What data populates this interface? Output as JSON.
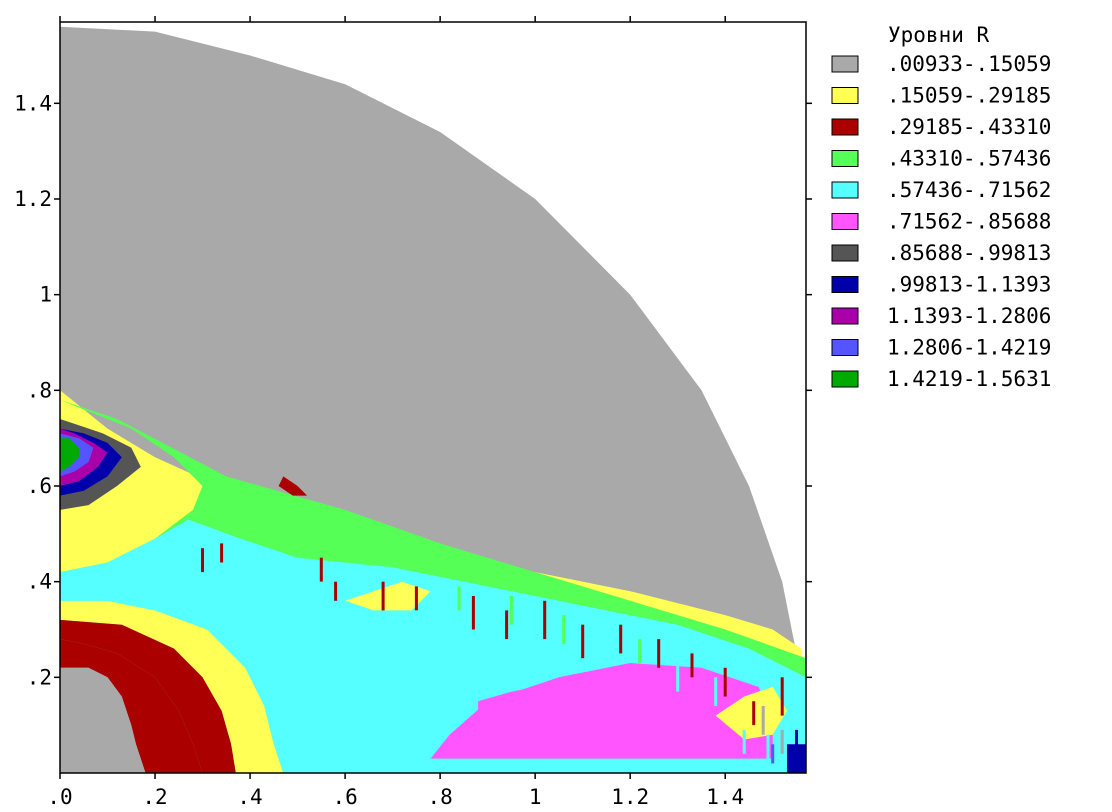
{
  "chart_data": {
    "type": "heatmap",
    "title": "",
    "xlabel": "",
    "ylabel": "",
    "xlim": [
      0,
      1.57
    ],
    "ylim": [
      0,
      1.57
    ],
    "x_ticks": [
      {
        "v": 0.0,
        "label": ".0"
      },
      {
        "v": 0.2,
        "label": ".2"
      },
      {
        "v": 0.4,
        "label": ".4"
      },
      {
        "v": 0.6,
        "label": ".6"
      },
      {
        "v": 0.8,
        "label": ".8"
      },
      {
        "v": 1.0,
        "label": "1"
      },
      {
        "v": 1.2,
        "label": "1.2"
      },
      {
        "v": 1.4,
        "label": "1.4"
      }
    ],
    "y_ticks": [
      {
        "v": 0.2,
        "label": ".2"
      },
      {
        "v": 0.4,
        "label": ".4"
      },
      {
        "v": 0.6,
        "label": ".6"
      },
      {
        "v": 0.8,
        "label": ".8"
      },
      {
        "v": 1.0,
        "label": "1"
      },
      {
        "v": 1.2,
        "label": "1.2"
      },
      {
        "v": 1.4,
        "label": "1.4"
      }
    ],
    "grid": false,
    "legend": {
      "title": "Уровни R",
      "placement": "right",
      "levels": [
        {
          "label": ".00933-.15059",
          "color": "#a9a9a9"
        },
        {
          "label": ".15059-.29185",
          "color": "#ffff55"
        },
        {
          "label": ".29185-.43310",
          "color": "#aa0000"
        },
        {
          "label": ".43310-.57436",
          "color": "#55ff55"
        },
        {
          "label": ".57436-.71562",
          "color": "#55ffff"
        },
        {
          "label": ".71562-.85688",
          "color": "#ff55ff"
        },
        {
          "label": ".85688-.99813",
          "color": "#555555"
        },
        {
          "label": ".99813-1.1393",
          "color": "#0000aa"
        },
        {
          "label": "1.1393-1.2806",
          "color": "#aa00aa"
        },
        {
          "label": "1.2806-1.4219",
          "color": "#5555ff"
        },
        {
          "label": "1.4219-1.5631",
          "color": "#00aa00"
        }
      ]
    },
    "domain_outline": [
      [
        0,
        1.56
      ],
      [
        0.2,
        1.55
      ],
      [
        0.4,
        1.5
      ],
      [
        0.6,
        1.44
      ],
      [
        0.8,
        1.34
      ],
      [
        1.0,
        1.2
      ],
      [
        1.2,
        1.0
      ],
      [
        1.35,
        0.8
      ],
      [
        1.45,
        0.6
      ],
      [
        1.52,
        0.4
      ],
      [
        1.56,
        0.2
      ],
      [
        1.57,
        0
      ]
    ],
    "regions": [
      {
        "level": 1,
        "points": [
          [
            0,
            0.32
          ],
          [
            0.13,
            0.31
          ],
          [
            0.24,
            0.26
          ],
          [
            0.3,
            0.2
          ],
          [
            0.34,
            0.13
          ],
          [
            0.36,
            0.06
          ],
          [
            0.37,
            0
          ],
          [
            1.57,
            0
          ],
          [
            1.57,
            0.2
          ],
          [
            1.56,
            0.26
          ],
          [
            1.5,
            0.3
          ],
          [
            1.4,
            0.33
          ],
          [
            1.2,
            0.38
          ],
          [
            1.0,
            0.42
          ],
          [
            0.8,
            0.46
          ],
          [
            0.6,
            0.51
          ],
          [
            0.4,
            0.57
          ],
          [
            0.2,
            0.66
          ],
          [
            0.1,
            0.72
          ],
          [
            0,
            0.8
          ]
        ]
      },
      {
        "level": 3,
        "points": [
          [
            0,
            0.42
          ],
          [
            0.1,
            0.44
          ],
          [
            0.2,
            0.49
          ],
          [
            0.28,
            0.55
          ],
          [
            0.3,
            0.6
          ],
          [
            0.24,
            0.66
          ],
          [
            0.15,
            0.72
          ],
          [
            0.05,
            0.76
          ],
          [
            0,
            0.78
          ],
          [
            0.12,
            0.74
          ],
          [
            0.35,
            0.62
          ],
          [
            0.6,
            0.55
          ],
          [
            0.8,
            0.48
          ],
          [
            1.0,
            0.42
          ],
          [
            1.2,
            0.36
          ],
          [
            1.4,
            0.3
          ],
          [
            1.57,
            0.24
          ],
          [
            1.57,
            0
          ],
          [
            0.47,
            0
          ],
          [
            0.45,
            0.06
          ],
          [
            0.43,
            0.14
          ],
          [
            0.39,
            0.22
          ],
          [
            0.31,
            0.3
          ],
          [
            0.2,
            0.34
          ],
          [
            0.1,
            0.36
          ],
          [
            0,
            0.36
          ]
        ]
      },
      {
        "level": 4,
        "points": [
          [
            0,
            0.36
          ],
          [
            0.1,
            0.36
          ],
          [
            0.2,
            0.34
          ],
          [
            0.31,
            0.3
          ],
          [
            0.39,
            0.22
          ],
          [
            0.43,
            0.14
          ],
          [
            0.45,
            0.06
          ],
          [
            0.47,
            0
          ],
          [
            1.57,
            0
          ],
          [
            1.57,
            0.2
          ],
          [
            1.45,
            0.26
          ],
          [
            1.3,
            0.31
          ],
          [
            1.1,
            0.35
          ],
          [
            0.9,
            0.39
          ],
          [
            0.7,
            0.43
          ],
          [
            0.5,
            0.45
          ],
          [
            0.38,
            0.49
          ],
          [
            0.27,
            0.53
          ],
          [
            0.2,
            0.49
          ],
          [
            0.1,
            0.44
          ],
          [
            0,
            0.42
          ]
        ]
      },
      {
        "level": 2,
        "points": [
          [
            0,
            0.22
          ],
          [
            0.06,
            0.22
          ],
          [
            0.1,
            0.2
          ],
          [
            0.13,
            0.16
          ],
          [
            0.15,
            0.1
          ],
          [
            0.16,
            0.06
          ],
          [
            0.18,
            0
          ],
          [
            0.3,
            0
          ],
          [
            0.28,
            0.06
          ],
          [
            0.25,
            0.13
          ],
          [
            0.2,
            0.2
          ],
          [
            0.12,
            0.25
          ],
          [
            0.05,
            0.27
          ],
          [
            0,
            0.28
          ]
        ]
      },
      {
        "level": 2,
        "points": [
          [
            0,
            0.28
          ],
          [
            0.05,
            0.27
          ],
          [
            0.12,
            0.25
          ],
          [
            0.2,
            0.2
          ],
          [
            0.25,
            0.13
          ],
          [
            0.28,
            0.06
          ],
          [
            0.3,
            0
          ],
          [
            0.37,
            0
          ],
          [
            0.36,
            0.06
          ],
          [
            0.34,
            0.13
          ],
          [
            0.3,
            0.2
          ],
          [
            0.24,
            0.26
          ],
          [
            0.13,
            0.31
          ],
          [
            0,
            0.32
          ]
        ]
      },
      {
        "level": 0,
        "points": [
          [
            0,
            0
          ],
          [
            0.18,
            0
          ],
          [
            0.16,
            0.06
          ],
          [
            0.15,
            0.1
          ],
          [
            0.13,
            0.16
          ],
          [
            0.1,
            0.2
          ],
          [
            0.06,
            0.22
          ],
          [
            0,
            0.22
          ]
        ]
      },
      {
        "level": 5,
        "points": [
          [
            0.78,
            0.03
          ],
          [
            0.82,
            0.08
          ],
          [
            0.9,
            0.15
          ],
          [
            1.05,
            0.2
          ],
          [
            1.2,
            0.23
          ],
          [
            1.35,
            0.22
          ],
          [
            1.47,
            0.18
          ],
          [
            1.5,
            0.12
          ],
          [
            1.5,
            0.03
          ]
        ]
      },
      {
        "level": 5,
        "points": [
          [
            0.88,
            0.15
          ],
          [
            0.95,
            0.17
          ],
          [
            1.05,
            0.19
          ],
          [
            1.12,
            0.2
          ],
          [
            1.14,
            0.17
          ],
          [
            1.12,
            0.12
          ],
          [
            1.06,
            0.09
          ],
          [
            0.98,
            0.08
          ],
          [
            0.92,
            0.09
          ],
          [
            0.88,
            0.12
          ]
        ]
      },
      {
        "level": 6,
        "points": [
          [
            0,
            0.55
          ],
          [
            0.06,
            0.56
          ],
          [
            0.12,
            0.6
          ],
          [
            0.17,
            0.64
          ],
          [
            0.15,
            0.68
          ],
          [
            0.09,
            0.71
          ],
          [
            0.03,
            0.73
          ],
          [
            0,
            0.74
          ]
        ]
      },
      {
        "level": 7,
        "points": [
          [
            0,
            0.58
          ],
          [
            0.05,
            0.59
          ],
          [
            0.1,
            0.62
          ],
          [
            0.13,
            0.66
          ],
          [
            0.1,
            0.69
          ],
          [
            0.05,
            0.71
          ],
          [
            0,
            0.72
          ]
        ]
      },
      {
        "level": 8,
        "points": [
          [
            0,
            0.6
          ],
          [
            0.04,
            0.61
          ],
          [
            0.08,
            0.64
          ],
          [
            0.1,
            0.67
          ],
          [
            0.07,
            0.69
          ],
          [
            0.03,
            0.71
          ],
          [
            0,
            0.72
          ]
        ]
      },
      {
        "level": 9,
        "points": [
          [
            0,
            0.62
          ],
          [
            0.03,
            0.63
          ],
          [
            0.06,
            0.65
          ],
          [
            0.07,
            0.68
          ],
          [
            0.04,
            0.7
          ],
          [
            0,
            0.71
          ]
        ]
      },
      {
        "level": 10,
        "points": [
          [
            0,
            0.63
          ],
          [
            0.02,
            0.64
          ],
          [
            0.04,
            0.66
          ],
          [
            0.04,
            0.68
          ],
          [
            0.02,
            0.7
          ],
          [
            0,
            0.7
          ]
        ]
      },
      {
        "level": 2,
        "points": [
          [
            0.47,
            0.62
          ],
          [
            0.5,
            0.6
          ],
          [
            0.52,
            0.58
          ],
          [
            0.49,
            0.58
          ],
          [
            0.46,
            0.6
          ]
        ]
      },
      {
        "level": 1,
        "points": [
          [
            0.6,
            0.36
          ],
          [
            0.66,
            0.38
          ],
          [
            0.72,
            0.4
          ],
          [
            0.78,
            0.38
          ],
          [
            0.74,
            0.34
          ],
          [
            0.66,
            0.34
          ]
        ]
      },
      {
        "level": 1,
        "points": [
          [
            1.38,
            0.12
          ],
          [
            1.44,
            0.16
          ],
          [
            1.5,
            0.18
          ],
          [
            1.53,
            0.13
          ],
          [
            1.5,
            0.08
          ],
          [
            1.44,
            0.07
          ]
        ]
      },
      {
        "level": 7,
        "points": [
          [
            1.53,
            0
          ],
          [
            1.57,
            0
          ],
          [
            1.57,
            0.06
          ],
          [
            1.53,
            0.06
          ]
        ]
      }
    ],
    "streaks": [
      {
        "level": 2,
        "x": 0.3,
        "y": 0.42,
        "len": 0.05
      },
      {
        "level": 2,
        "x": 0.34,
        "y": 0.44,
        "len": 0.04
      },
      {
        "level": 2,
        "x": 0.55,
        "y": 0.4,
        "len": 0.05
      },
      {
        "level": 2,
        "x": 0.58,
        "y": 0.36,
        "len": 0.04
      },
      {
        "level": 2,
        "x": 0.68,
        "y": 0.34,
        "len": 0.06
      },
      {
        "level": 2,
        "x": 0.75,
        "y": 0.34,
        "len": 0.05
      },
      {
        "level": 2,
        "x": 0.87,
        "y": 0.3,
        "len": 0.07
      },
      {
        "level": 2,
        "x": 0.94,
        "y": 0.28,
        "len": 0.06
      },
      {
        "level": 2,
        "x": 1.02,
        "y": 0.28,
        "len": 0.08
      },
      {
        "level": 2,
        "x": 1.1,
        "y": 0.24,
        "len": 0.07
      },
      {
        "level": 2,
        "x": 1.18,
        "y": 0.25,
        "len": 0.06
      },
      {
        "level": 2,
        "x": 1.26,
        "y": 0.22,
        "len": 0.06
      },
      {
        "level": 2,
        "x": 1.33,
        "y": 0.2,
        "len": 0.05
      },
      {
        "level": 2,
        "x": 1.4,
        "y": 0.16,
        "len": 0.06
      },
      {
        "level": 2,
        "x": 1.46,
        "y": 0.1,
        "len": 0.05
      },
      {
        "level": 2,
        "x": 1.52,
        "y": 0.12,
        "len": 0.08
      },
      {
        "level": 3,
        "x": 0.84,
        "y": 0.34,
        "len": 0.05
      },
      {
        "level": 3,
        "x": 0.95,
        "y": 0.31,
        "len": 0.06
      },
      {
        "level": 3,
        "x": 1.06,
        "y": 0.27,
        "len": 0.06
      },
      {
        "level": 3,
        "x": 1.22,
        "y": 0.23,
        "len": 0.05
      },
      {
        "level": 4,
        "x": 1.3,
        "y": 0.17,
        "len": 0.06
      },
      {
        "level": 4,
        "x": 1.38,
        "y": 0.14,
        "len": 0.06
      },
      {
        "level": 4,
        "x": 1.44,
        "y": 0.04,
        "len": 0.05
      },
      {
        "level": 4,
        "x": 1.49,
        "y": 0.02,
        "len": 0.06
      },
      {
        "level": 7,
        "x": 1.55,
        "y": 0.05,
        "len": 0.04
      },
      {
        "level": 9,
        "x": 1.5,
        "y": 0.02,
        "len": 0.04
      },
      {
        "level": 0,
        "x": 1.48,
        "y": 0.08,
        "len": 0.06
      },
      {
        "level": 0,
        "x": 1.52,
        "y": 0.04,
        "len": 0.05
      }
    ]
  }
}
